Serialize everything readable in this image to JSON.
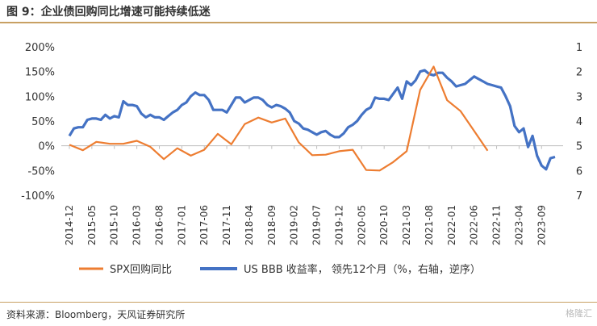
{
  "title": "图 9：企业债回购同比增速可能持续低迷",
  "source": "资料来源：Bloomberg，天风证券研究所",
  "watermark": "格隆汇",
  "colors": {
    "spx": "#ED7D31",
    "bbb": "#4472C4"
  },
  "chart_data": {
    "type": "line",
    "title": "图 9：企业债回购同比增速可能持续低迷",
    "x_tick_labels": [
      "2014-12",
      "2015-05",
      "2015-10",
      "2016-03",
      "2016-08",
      "2017-01",
      "2017-06",
      "2017-11",
      "2018-04",
      "2018-09",
      "2019-02",
      "2019-07",
      "2019-12",
      "2020-05",
      "2020-10",
      "2021-03",
      "2021-08",
      "2022-01",
      "2022-06",
      "2022-11",
      "2023-04",
      "2023-09"
    ],
    "y_left": {
      "ticks": [
        "200%",
        "150%",
        "100%",
        "50%",
        "0%",
        "-50%",
        "-100%"
      ],
      "range": [
        -100,
        200
      ],
      "unit": "%"
    },
    "y_right": {
      "ticks": [
        "1",
        "2",
        "3",
        "4",
        "5",
        "6",
        "7"
      ],
      "range": [
        1,
        7
      ],
      "inverted": true
    },
    "legend": [
      {
        "name": "SPX回购同比",
        "color": "#ED7D31"
      },
      {
        "name": "US BBB 收益率， 领先12个月（%，右轴，逆序）",
        "color": "#4472C4"
      }
    ],
    "series": [
      {
        "name": "SPX回购同比",
        "axis": "left",
        "frequency": "quarterly",
        "start": "2014-12",
        "values": [
          2,
          -9,
          8,
          4,
          4,
          10,
          -2,
          -27,
          -5,
          -20,
          -8,
          24,
          3,
          44,
          57,
          47,
          55,
          7,
          -19,
          -18,
          -11,
          -8,
          -49,
          -50,
          -33,
          -11,
          113,
          160,
          92,
          70,
          30,
          -10
        ]
      },
      {
        "name": "US BBB 收益率， 领先12个月（%，右轴，逆序）",
        "axis": "right",
        "frequency": "monthly",
        "start": "2014-12",
        "values": [
          4.6,
          4.3,
          4.25,
          4.25,
          3.95,
          3.9,
          3.9,
          3.95,
          3.75,
          3.9,
          3.8,
          3.85,
          3.2,
          3.35,
          3.35,
          3.4,
          3.7,
          3.85,
          3.75,
          3.85,
          3.85,
          3.95,
          3.8,
          3.65,
          3.55,
          3.35,
          3.25,
          3.0,
          2.85,
          2.95,
          2.95,
          3.15,
          3.55,
          3.55,
          3.55,
          3.65,
          3.35,
          3.05,
          3.05,
          3.25,
          3.15,
          3.05,
          3.05,
          3.15,
          3.35,
          3.45,
          3.35,
          3.4,
          3.5,
          3.65,
          4.0,
          4.1,
          4.3,
          4.35,
          4.45,
          4.55,
          4.45,
          4.4,
          4.55,
          4.65,
          4.65,
          4.5,
          4.25,
          4.15,
          4.0,
          3.75,
          3.55,
          3.45,
          3.05,
          3.1,
          3.1,
          3.15,
          2.9,
          2.65,
          3.1,
          2.4,
          2.55,
          2.35,
          2.0,
          1.95,
          2.1,
          2.15,
          2.05,
          2.05,
          2.25,
          2.4,
          2.6,
          2.55,
          2.5,
          2.35,
          2.2,
          2.3,
          2.4,
          2.5,
          2.55,
          2.6,
          2.65,
          3.0,
          3.4,
          4.2,
          4.45,
          4.3,
          5.05,
          4.6,
          5.4,
          5.8,
          5.95,
          5.5,
          5.45
        ]
      }
    ]
  }
}
